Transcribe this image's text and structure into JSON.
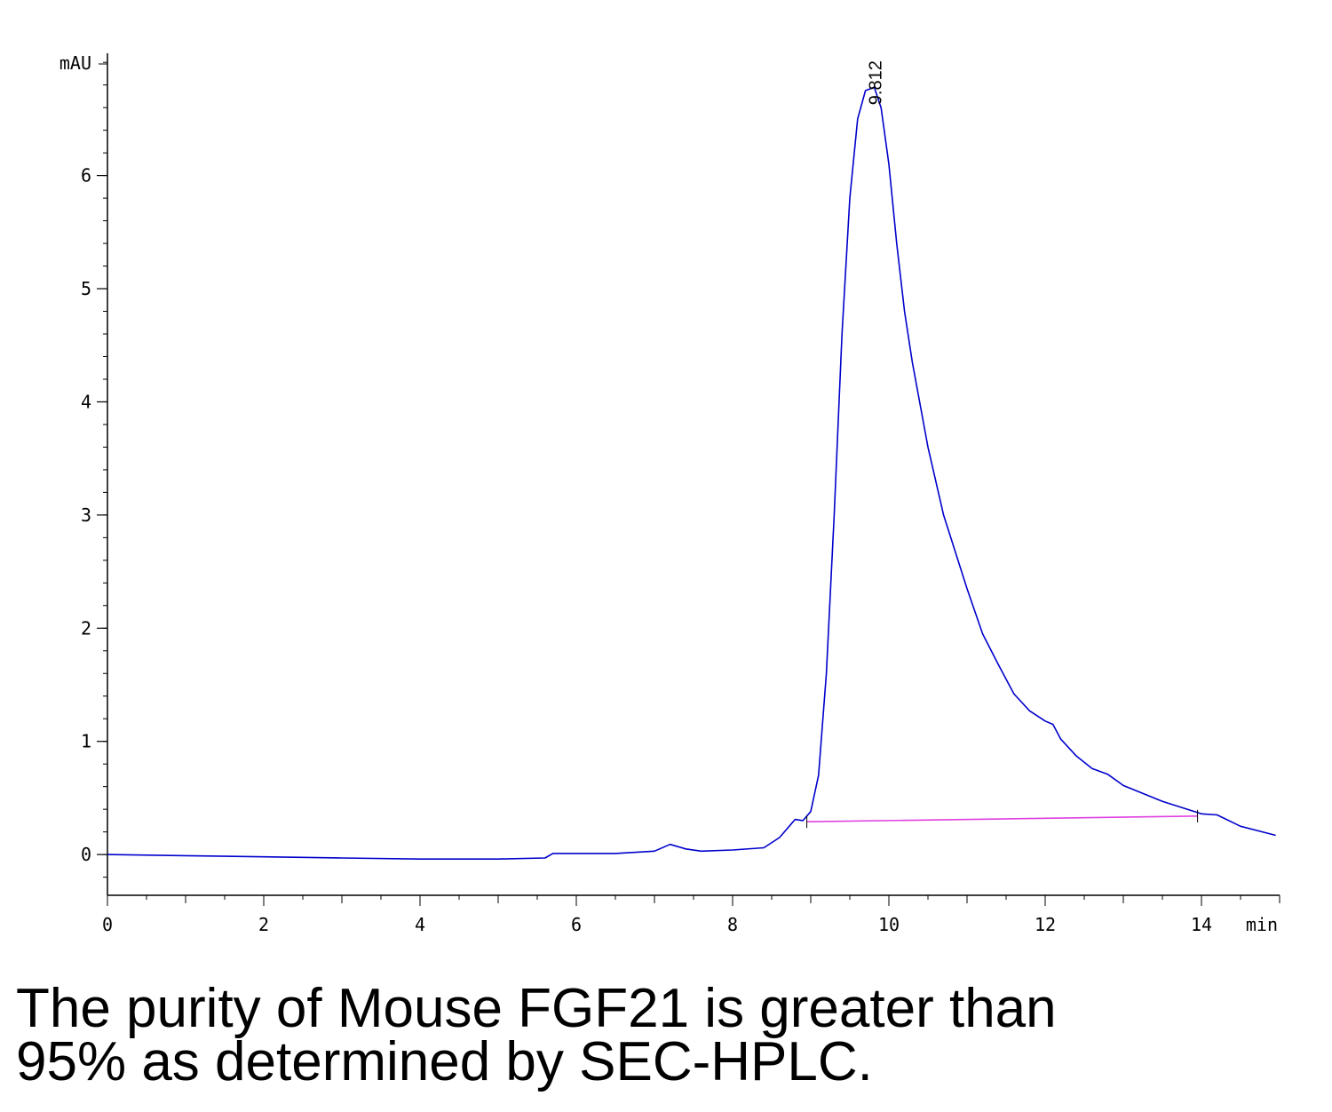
{
  "chart_data": {
    "type": "line",
    "x_unit": "min",
    "y_unit": "mAU",
    "xlim": [
      0,
      15
    ],
    "ylim": [
      -0.36,
      7.08
    ],
    "x_ticks": [
      0,
      2,
      4,
      6,
      8,
      10,
      12,
      14
    ],
    "x_tick_labels": [
      "0",
      "2",
      "4",
      "6",
      "8",
      "10",
      "12",
      "14"
    ],
    "y_ticks": [
      0,
      1,
      2,
      3,
      4,
      5,
      6
    ],
    "y_tick_labels": [
      "0",
      "1",
      "2",
      "3",
      "4",
      "5",
      "6"
    ],
    "series": [
      {
        "color": "#0000cc",
        "x": [
          0,
          1,
          2,
          3,
          4,
          5,
          5.6,
          5.7,
          6.5,
          7.0,
          7.2,
          7.4,
          7.6,
          8.0,
          8.4,
          8.6,
          8.8,
          8.9,
          9.0,
          9.1,
          9.2,
          9.3,
          9.4,
          9.5,
          9.6,
          9.7,
          9.812,
          9.9,
          10.0,
          10.1,
          10.2,
          10.3,
          10.5,
          10.7,
          11.0,
          11.2,
          11.4,
          11.6,
          11.8,
          12.0,
          12.1,
          12.2,
          12.4,
          12.6,
          12.8,
          13.0,
          13.5,
          14.0,
          14.2,
          14.5,
          14.95
        ],
        "y": [
          0,
          -0.01,
          -0.02,
          -0.03,
          -0.04,
          -0.04,
          -0.03,
          0.01,
          0.01,
          0.03,
          0.09,
          0.05,
          0.03,
          0.04,
          0.06,
          0.15,
          0.31,
          0.3,
          0.38,
          0.7,
          1.6,
          3.0,
          4.6,
          5.8,
          6.5,
          6.75,
          6.78,
          6.6,
          6.1,
          5.4,
          4.8,
          4.35,
          3.6,
          3.0,
          2.35,
          1.95,
          1.68,
          1.42,
          1.27,
          1.18,
          1.15,
          1.02,
          0.87,
          0.76,
          0.71,
          0.61,
          0.47,
          0.36,
          0.35,
          0.25,
          0.17
        ]
      },
      {
        "color": "#e040e0",
        "x": [
          8.95,
          13.95
        ],
        "y": [
          0.29,
          0.34
        ]
      }
    ],
    "annotations": [
      {
        "text": "9.812",
        "x": 9.812,
        "y": 6.78
      }
    ]
  },
  "caption": {
    "line1": "The purity of Mouse FGF21 is greater than",
    "line2": "95% as determined by SEC-HPLC."
  }
}
